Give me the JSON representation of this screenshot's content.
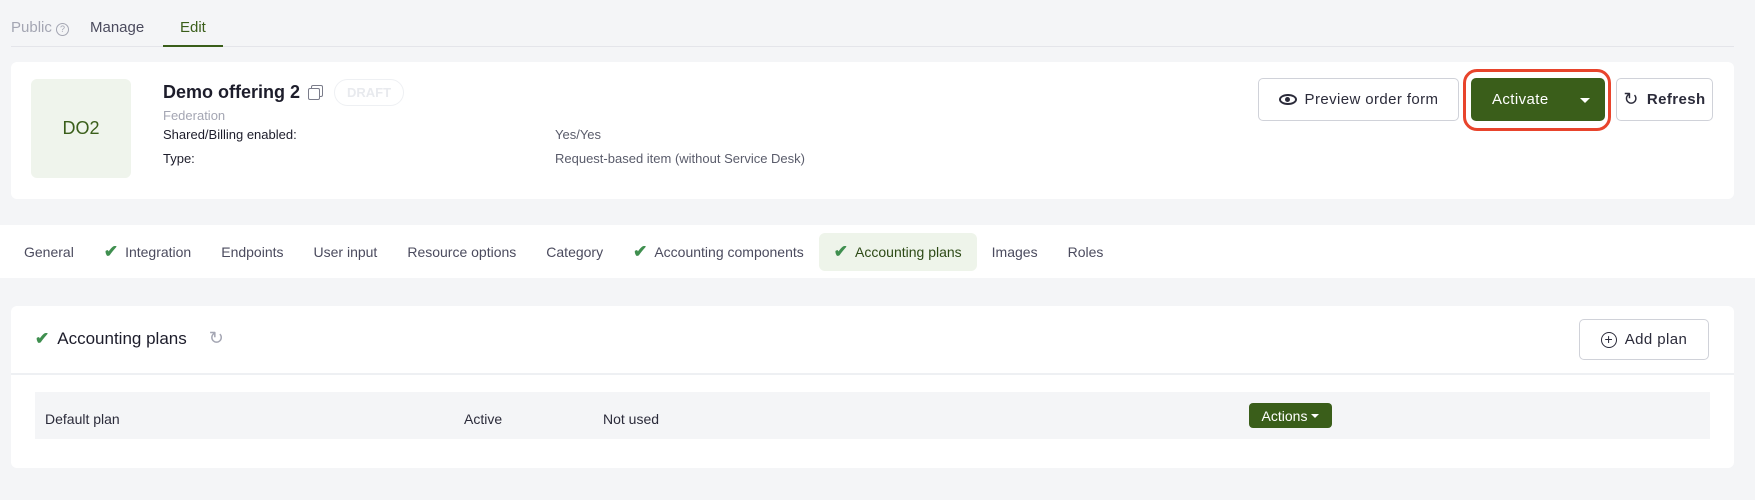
{
  "top_tabs": {
    "public": "Public",
    "manage": "Manage",
    "edit": "Edit"
  },
  "offering": {
    "logo_text": "DO2",
    "title": "Demo offering 2",
    "badge": "DRAFT",
    "organization": "Federation",
    "fields": [
      {
        "label": "Shared/Billing enabled:",
        "value": "Yes/Yes"
      },
      {
        "label": "Type:",
        "value": "Request-based item (without Service Desk)"
      }
    ]
  },
  "actions": {
    "preview": "Preview order form",
    "activate": "Activate",
    "refresh": "Refresh"
  },
  "colors": {
    "primary": "#3a5e1a",
    "highlight": "#e8442c",
    "check": "#3f8f4f"
  },
  "tabs": [
    {
      "label": "General",
      "check": false
    },
    {
      "label": "Integration",
      "check": true
    },
    {
      "label": "Endpoints",
      "check": false
    },
    {
      "label": "User input",
      "check": false
    },
    {
      "label": "Resource options",
      "check": false
    },
    {
      "label": "Category",
      "check": false
    },
    {
      "label": "Accounting components",
      "check": true
    },
    {
      "label": "Accounting plans",
      "check": true,
      "active": true
    },
    {
      "label": "Images",
      "check": false
    },
    {
      "label": "Roles",
      "check": false
    }
  ],
  "plans": {
    "title": "Accounting plans",
    "add_label": "Add plan",
    "rows": [
      {
        "name": "Default plan",
        "status": "Active",
        "usage": "Not used",
        "actions": "Actions"
      }
    ]
  }
}
